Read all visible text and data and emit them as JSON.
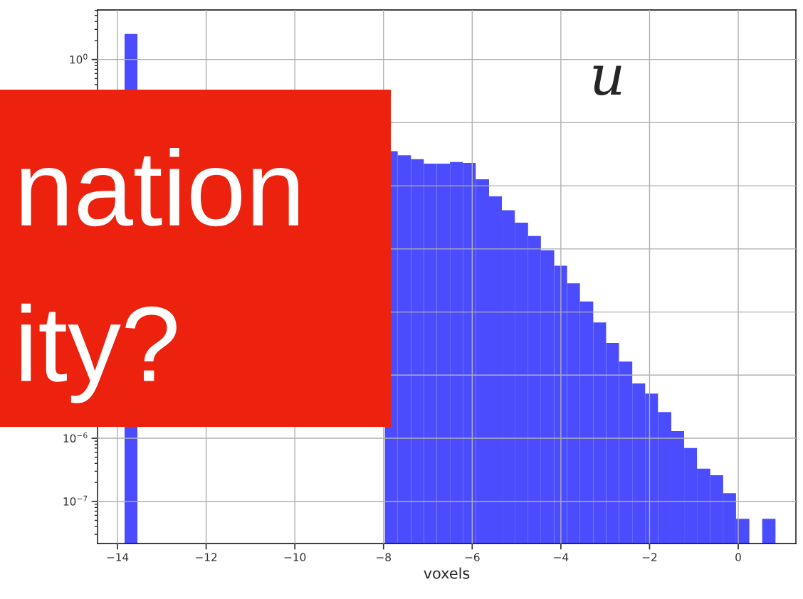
{
  "chart_data": {
    "type": "histogram",
    "xlabel": "voxels",
    "annotations": [
      "u",
      "nation",
      "ity?"
    ],
    "bins": [
      -13.84,
      -13.55,
      -7.97,
      -7.68,
      -7.38,
      -7.09,
      -6.8,
      -6.5,
      -6.21,
      -5.92,
      -5.62,
      -5.33,
      -5.04,
      -4.74,
      -4.45,
      -4.15,
      -3.86,
      -3.57,
      -3.27,
      -2.98,
      -2.69,
      -2.39,
      -2.1,
      -1.81,
      -1.51,
      -1.22,
      -0.93,
      -0.63,
      -0.34,
      -0.05,
      0.25,
      0.54,
      0.84
    ],
    "values": [
      2.54,
      null,
      0.0353,
      0.0305,
      0.0263,
      0.0224,
      0.0224,
      0.0238,
      0.023,
      0.0127,
      0.0068,
      0.0041,
      0.0026,
      0.0016,
      0.00095,
      0.00054,
      0.000285,
      0.000147,
      6.84e-05,
      3.25e-05,
      1.64e-05,
      7.4e-06,
      5.1e-06,
      2.6e-06,
      1.3e-06,
      7e-07,
      3.3e-07,
      2.6e-07,
      1.35e-07,
      5.3e-08,
      null,
      5.3e-08
    ],
    "color": "#4c4cff",
    "log": "y",
    "grid": true,
    "xlim": [
      -14.45,
      1.3
    ],
    "ylim": [
      2.15e-08,
      6.1
    ],
    "xticks": [
      {
        "value": -14,
        "label": "−14"
      },
      {
        "value": -12,
        "label": "−12"
      },
      {
        "value": -10,
        "label": "−10"
      },
      {
        "value": -8,
        "label": "−8"
      },
      {
        "value": -6,
        "label": "−6"
      },
      {
        "value": -4,
        "label": "−4"
      },
      {
        "value": -2,
        "label": "−2"
      },
      0
    ],
    "yticks": [
      {
        "value": 1,
        "label": "10$^{0}$"
      },
      {
        "value": 0.1,
        "label": null
      },
      {
        "value": 0.01,
        "label": null
      },
      {
        "value": 0.001,
        "label": null
      },
      {
        "value": 0.0001,
        "label": null
      },
      {
        "value": 1e-05,
        "label": null
      },
      {
        "value": 1e-06,
        "label": "10$^{−6}$"
      },
      {
        "value": 1e-07,
        "label": "10$^{−7}$"
      }
    ]
  }
}
